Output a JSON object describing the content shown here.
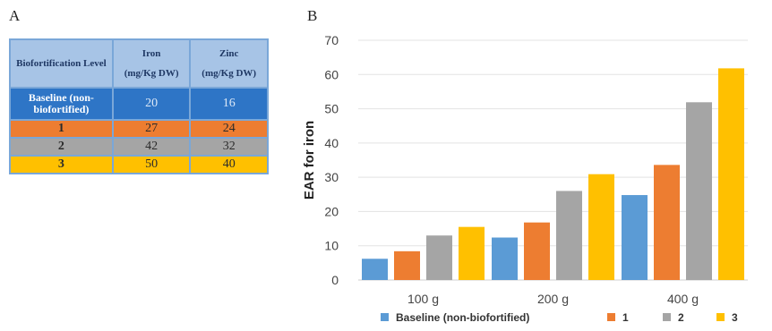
{
  "panels": {
    "a": "A",
    "b": "B"
  },
  "table": {
    "headers": {
      "level": "Biofortification Level",
      "iron_top": "Iron",
      "iron_unit": "(mg/Kg DW)",
      "zinc_top": "Zinc",
      "zinc_unit": "(mg/Kg DW)"
    },
    "rows": [
      {
        "level": "Baseline (non-biofortified)",
        "iron": "20",
        "zinc": "16",
        "color": "#2e75c6"
      },
      {
        "level": "1",
        "iron": "27",
        "zinc": "24",
        "color": "#ed7d31"
      },
      {
        "level": "2",
        "iron": "42",
        "zinc": "32",
        "color": "#a5a5a5"
      },
      {
        "level": "3",
        "iron": "50",
        "zinc": "40",
        "color": "#ffc000"
      }
    ]
  },
  "chart_data": {
    "type": "bar",
    "categories": [
      "100 g",
      "200 g",
      "400 g"
    ],
    "series": [
      {
        "name": "Baseline (non-biofortified)",
        "color": "#5b9bd5",
        "values": [
          6.2,
          12.4,
          24.8
        ]
      },
      {
        "name": "1",
        "color": "#ed7d31",
        "values": [
          8.4,
          16.8,
          33.6
        ]
      },
      {
        "name": "2",
        "color": "#a5a5a5",
        "values": [
          13.0,
          26.0,
          51.9
        ]
      },
      {
        "name": "3",
        "color": "#ffc000",
        "values": [
          15.5,
          30.9,
          61.8
        ]
      }
    ],
    "ylabel": "EAR for iron",
    "ylim": [
      0,
      70
    ],
    "yticks": [
      0,
      10,
      20,
      30,
      40,
      50,
      60,
      70
    ],
    "grid": true,
    "legend": "bottom"
  }
}
